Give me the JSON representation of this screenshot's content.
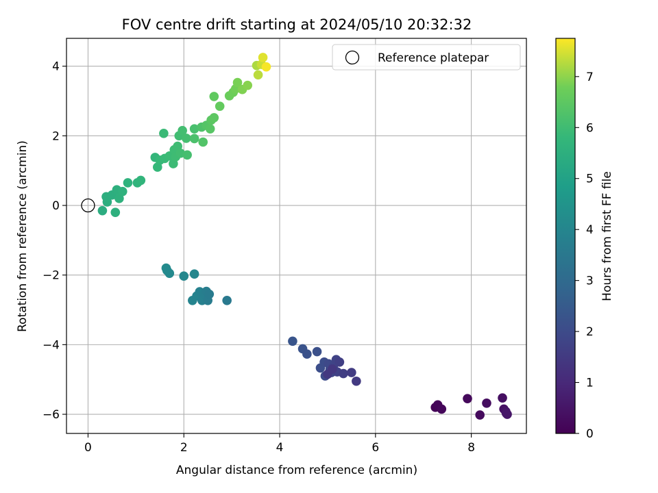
{
  "chart_data": {
    "type": "scatter",
    "title": "FOV centre drift starting at 2024/05/10 20:32:32",
    "xlabel": "Angular distance from reference (arcmin)",
    "ylabel": "Rotation from reference (arcmin)",
    "xlim": [
      -0.45,
      9.15
    ],
    "ylim": [
      -6.55,
      4.8
    ],
    "x_ticks": [
      0,
      2,
      4,
      6,
      8
    ],
    "y_ticks": [
      -6,
      -4,
      -2,
      0,
      2,
      4
    ],
    "grid": true,
    "legend": {
      "position": "top-right",
      "entries": [
        "Reference platepar"
      ]
    },
    "colorbar": {
      "label": "Hours from first FF file",
      "colormap": "viridis",
      "min": 0,
      "max": 7.75,
      "ticks": [
        0,
        1,
        2,
        3,
        4,
        5,
        6,
        7
      ]
    },
    "reference_point": {
      "x": 0,
      "y": 0
    },
    "series": [
      {
        "points": [
          [
            7.25,
            -5.8,
            0.05
          ],
          [
            7.3,
            -5.73,
            0.1
          ],
          [
            7.38,
            -5.85,
            0.15
          ],
          [
            7.92,
            -5.55,
            0.2
          ],
          [
            8.18,
            -6.02,
            0.25
          ],
          [
            8.32,
            -5.68,
            0.3
          ],
          [
            8.65,
            -5.53,
            0.35
          ],
          [
            8.68,
            -5.85,
            0.4
          ],
          [
            8.72,
            -5.92,
            0.45
          ],
          [
            8.75,
            -6.0,
            0.5
          ],
          [
            8.73,
            -5.97,
            0.55
          ],
          [
            4.27,
            -3.9,
            2.3
          ],
          [
            4.48,
            -4.12,
            2.25
          ],
          [
            4.57,
            -4.27,
            2.2
          ],
          [
            4.78,
            -4.2,
            2.15
          ],
          [
            4.85,
            -4.67,
            2.1
          ],
          [
            4.93,
            -4.5,
            2.05
          ],
          [
            4.95,
            -4.9,
            2.0
          ],
          [
            5.02,
            -4.55,
            1.95
          ],
          [
            5.05,
            -4.72,
            1.9
          ],
          [
            5.08,
            -4.8,
            1.85
          ],
          [
            5.12,
            -4.62,
            1.8
          ],
          [
            5.18,
            -4.43,
            1.75
          ],
          [
            5.2,
            -4.78,
            1.7
          ],
          [
            5.25,
            -4.5,
            1.65
          ],
          [
            5.33,
            -4.83,
            1.6
          ],
          [
            5.5,
            -4.8,
            1.55
          ],
          [
            5.6,
            -5.05,
            1.5
          ],
          [
            5.0,
            -4.85,
            1.45
          ],
          [
            5.1,
            -4.7,
            1.4
          ],
          [
            1.63,
            -1.8,
            4.2
          ],
          [
            1.65,
            -1.87,
            4.15
          ],
          [
            1.7,
            -1.95,
            4.1
          ],
          [
            2.0,
            -2.03,
            4.05
          ],
          [
            2.22,
            -1.97,
            4.0
          ],
          [
            2.18,
            -2.73,
            3.95
          ],
          [
            2.27,
            -2.6,
            3.9
          ],
          [
            2.33,
            -2.48,
            3.85
          ],
          [
            2.38,
            -2.73,
            3.8
          ],
          [
            2.43,
            -2.55,
            3.75
          ],
          [
            2.47,
            -2.47,
            3.7
          ],
          [
            2.5,
            -2.73,
            3.65
          ],
          [
            2.53,
            -2.55,
            3.6
          ],
          [
            2.9,
            -2.73,
            3.55
          ],
          [
            0.3,
            -0.15,
            5.4
          ],
          [
            0.4,
            0.1,
            5.42
          ],
          [
            0.38,
            0.25,
            5.45
          ],
          [
            0.5,
            0.3,
            5.47
          ],
          [
            0.57,
            -0.2,
            5.5
          ],
          [
            0.6,
            0.45,
            5.52
          ],
          [
            0.65,
            0.2,
            5.55
          ],
          [
            0.72,
            0.4,
            5.58
          ],
          [
            0.83,
            0.65,
            5.6
          ],
          [
            1.03,
            0.65,
            5.65
          ],
          [
            1.1,
            0.72,
            5.7
          ],
          [
            1.4,
            1.38,
            5.75
          ],
          [
            1.45,
            1.1,
            5.8
          ],
          [
            1.5,
            1.3,
            5.85
          ],
          [
            1.6,
            1.35,
            5.88
          ],
          [
            1.58,
            2.07,
            5.9
          ],
          [
            1.7,
            1.42,
            5.92
          ],
          [
            1.78,
            1.2,
            5.94
          ],
          [
            1.8,
            1.6,
            5.96
          ],
          [
            1.83,
            1.4,
            5.98
          ],
          [
            1.87,
            1.7,
            6.0
          ],
          [
            1.9,
            2.0,
            6.02
          ],
          [
            1.93,
            1.5,
            6.04
          ],
          [
            1.97,
            2.15,
            6.06
          ],
          [
            2.05,
            1.93,
            6.08
          ],
          [
            2.07,
            1.45,
            6.1
          ],
          [
            2.22,
            2.2,
            6.15
          ],
          [
            2.22,
            1.92,
            6.2
          ],
          [
            2.37,
            2.25,
            6.25
          ],
          [
            2.4,
            1.82,
            6.3
          ],
          [
            2.47,
            2.3,
            6.35
          ],
          [
            2.55,
            2.2,
            6.4
          ],
          [
            2.57,
            2.45,
            6.45
          ],
          [
            2.63,
            2.52,
            6.5
          ],
          [
            2.63,
            3.13,
            6.55
          ],
          [
            2.75,
            2.85,
            6.6
          ],
          [
            2.95,
            3.15,
            6.7
          ],
          [
            3.03,
            3.25,
            6.75
          ],
          [
            3.08,
            3.35,
            6.8
          ],
          [
            3.12,
            3.53,
            6.85
          ],
          [
            3.22,
            3.33,
            6.9
          ],
          [
            3.33,
            3.45,
            6.95
          ],
          [
            3.52,
            4.02,
            7.2
          ],
          [
            3.55,
            3.75,
            7.3
          ],
          [
            3.62,
            4.05,
            7.4
          ],
          [
            3.65,
            4.25,
            7.55
          ],
          [
            3.72,
            3.98,
            7.7
          ]
        ]
      }
    ]
  }
}
